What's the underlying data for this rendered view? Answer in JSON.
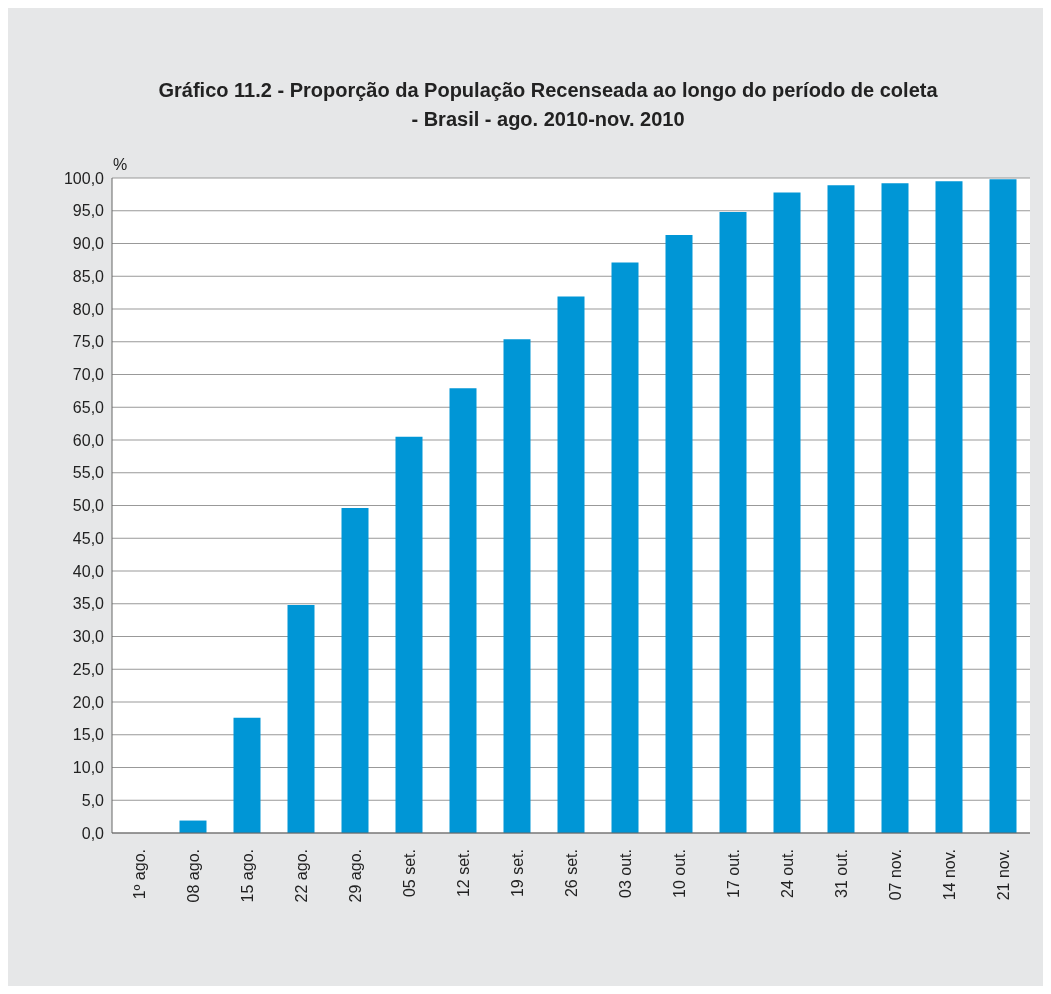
{
  "chart_data": {
    "type": "bar",
    "title": "Gráfico 11.2  - Proporção da População Recenseada ao longo do período de coleta - Brasil - ago. 2010-nov. 2010",
    "ylabel": "%",
    "categories": [
      "1º ago.",
      "08 ago.",
      "15 ago.",
      "22 ago.",
      "29 ago.",
      "05 set.",
      "12 set.",
      "19 set.",
      "26 set.",
      "03 out.",
      "10 out.",
      "17 out.",
      "24 out.",
      "31 out.",
      "07 nov.",
      "14 nov.",
      "21 nov."
    ],
    "values": [
      0,
      1.9,
      17.6,
      34.8,
      49.6,
      60.5,
      67.9,
      75.4,
      81.9,
      87.1,
      91.3,
      94.8,
      97.8,
      98.9,
      99.2,
      99.5,
      99.8
    ],
    "color": "#0096d6",
    "ylim": [
      0,
      100
    ],
    "yticks": [
      {
        "value": 0,
        "label": "0,0"
      },
      {
        "value": 5,
        "label": "5,0"
      },
      {
        "value": 10,
        "label": "10,0"
      },
      {
        "value": 15,
        "label": "15,0"
      },
      {
        "value": 20,
        "label": "20,0"
      },
      {
        "value": 25,
        "label": "25,0"
      },
      {
        "value": 30,
        "label": "30,0"
      },
      {
        "value": 35,
        "label": "35,0"
      },
      {
        "value": 40,
        "label": "40,0"
      },
      {
        "value": 45,
        "label": "45,0"
      },
      {
        "value": 50,
        "label": "50,0"
      },
      {
        "value": 55,
        "label": "55,0"
      },
      {
        "value": 60,
        "label": "60,0"
      },
      {
        "value": 65,
        "label": "65,0"
      },
      {
        "value": 70,
        "label": "70,0"
      },
      {
        "value": 75,
        "label": "75,0"
      },
      {
        "value": 80,
        "label": "80,0"
      },
      {
        "value": 85,
        "label": "85,0"
      },
      {
        "value": 90,
        "label": "90,0"
      },
      {
        "value": 95,
        "label": "95,0"
      },
      {
        "value": 100,
        "label": "100,0"
      }
    ],
    "grid": "y"
  }
}
